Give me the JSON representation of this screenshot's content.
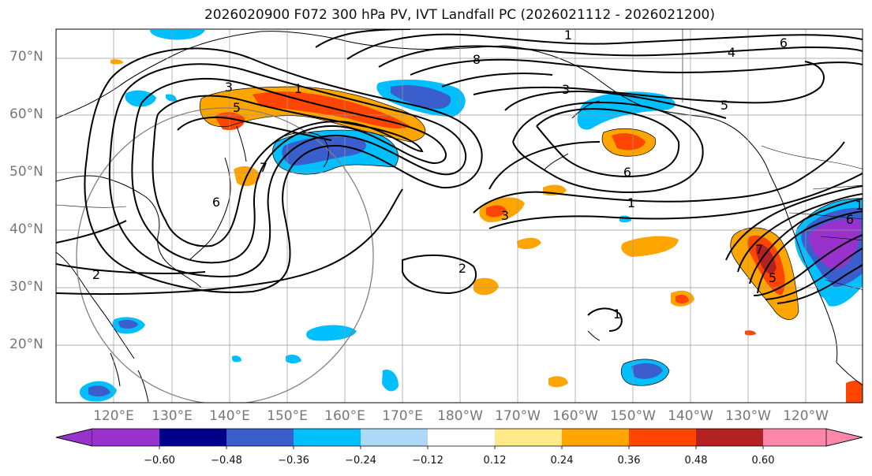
{
  "title": "2026020900 F072 300 hPa PV, IVT Landfall PC (2026021112 - 2026021200)",
  "lat_labels": [
    "70°N",
    "60°N",
    "50°N",
    "40°N",
    "30°N",
    "20°N"
  ],
  "lon_labels": [
    "120°E",
    "130°E",
    "140°E",
    "150°E",
    "160°E",
    "170°E",
    "180°W",
    "170°W",
    "160°W",
    "150°W",
    "140°W",
    "130°W",
    "120°W"
  ],
  "colorbar": {
    "ticks": [
      "−0.60",
      "−0.48",
      "−0.36",
      "−0.24",
      "−0.12",
      "0.12",
      "0.24",
      "0.36",
      "0.48",
      "0.60"
    ],
    "colors": [
      "#9932cc",
      "#00008b",
      "#3a5fcd",
      "#00bfff",
      "#add8f6",
      "#ffffff",
      "#ffea8a",
      "#ffa500",
      "#ff4500",
      "#b22222",
      "#ff88aa"
    ]
  },
  "contour_labels": [
    "1",
    "3",
    "5",
    "1",
    "8",
    "4",
    "6",
    "5",
    "3",
    "6",
    "1",
    "3",
    "2",
    "1",
    "7",
    "6",
    "2",
    "5",
    "7",
    "6",
    "1"
  ]
}
